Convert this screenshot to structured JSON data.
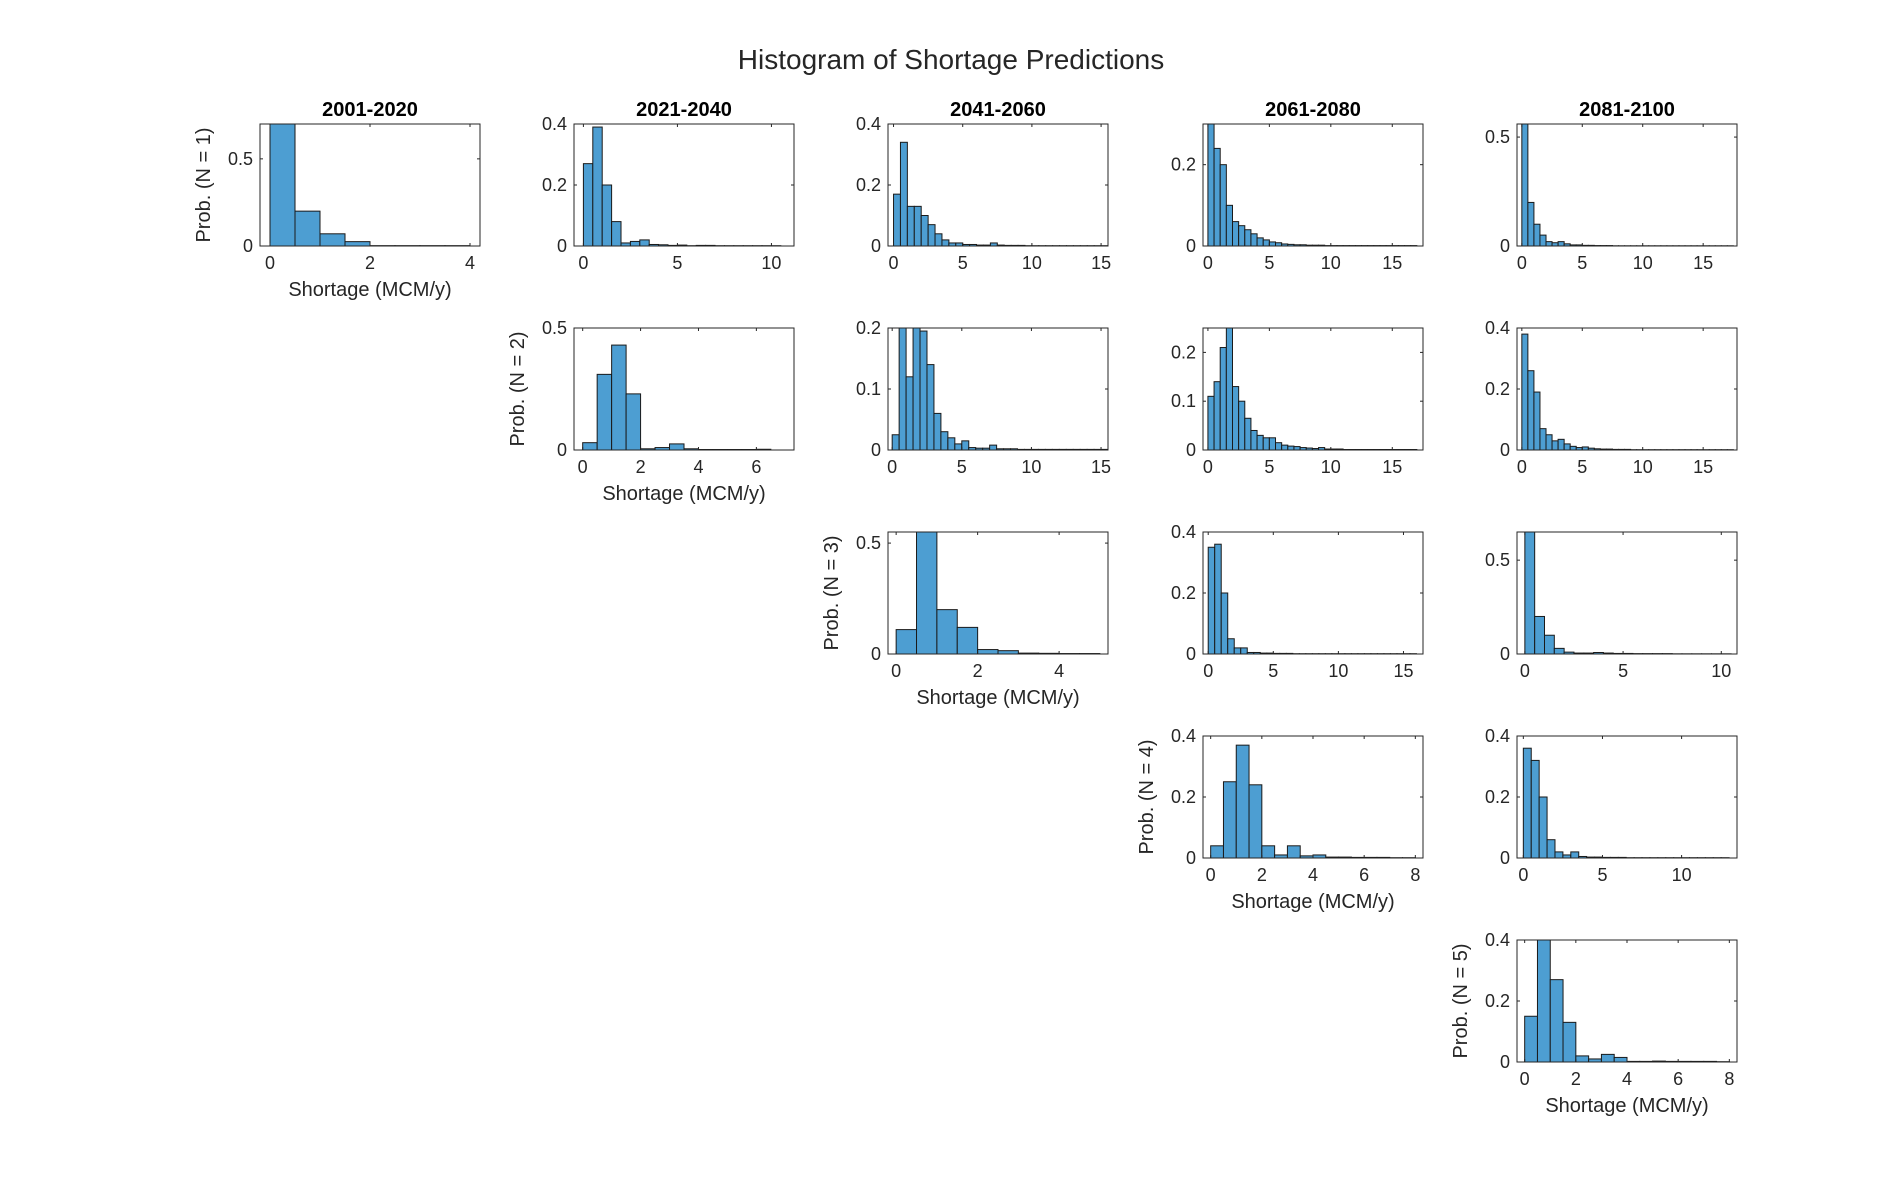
{
  "title": "Histogram of Shortage Predictions",
  "column_titles": [
    "2001-2020",
    "2021-2040",
    "2041-2060",
    "2061-2080",
    "2081-2100"
  ],
  "row_labels": [
    "Prob. (N = 1)",
    "Prob. (N = 2)",
    "Prob. (N = 3)",
    "Prob. (N = 4)",
    "Prob. (N = 5)"
  ],
  "xlabel": "Shortage (MCM/y)",
  "colors": {
    "bar": "#4d9ed2",
    "bar_edge": "#1a1a1a",
    "axis": "#262626"
  },
  "chart_data": [
    {
      "type": "bar",
      "row": 1,
      "col": 1,
      "xlim": [
        -0.2,
        4.2
      ],
      "ylim": [
        0,
        0.7
      ],
      "xticks": [
        0,
        2,
        4
      ],
      "yticks": [
        0,
        0.5
      ],
      "bin_start": 0,
      "bin_width": 0.5,
      "values": [
        0.72,
        0.2,
        0.07,
        0.025,
        0.002,
        0.002,
        0.002,
        0.002
      ]
    },
    {
      "type": "bar",
      "row": 1,
      "col": 2,
      "xlim": [
        -0.5,
        11.2
      ],
      "ylim": [
        0,
        0.4
      ],
      "xticks": [
        0,
        5,
        10
      ],
      "yticks": [
        0,
        0.2,
        0.4
      ],
      "bin_start": 0,
      "bin_width": 0.5,
      "values": [
        0.27,
        0.39,
        0.2,
        0.08,
        0.01,
        0.015,
        0.02,
        0.005,
        0.004,
        0.002,
        0.003,
        0.001,
        0.002,
        0.002,
        0.001,
        0.001,
        0.001,
        0.001,
        0.001,
        0.001,
        0.001
      ]
    },
    {
      "type": "bar",
      "row": 1,
      "col": 3,
      "xlim": [
        -0.4,
        15.5
      ],
      "ylim": [
        0,
        0.4
      ],
      "xticks": [
        0,
        5,
        10,
        15
      ],
      "yticks": [
        0,
        0.2,
        0.4
      ],
      "bin_start": 0,
      "bin_width": 0.5,
      "values": [
        0.17,
        0.34,
        0.13,
        0.13,
        0.1,
        0.07,
        0.04,
        0.02,
        0.01,
        0.01,
        0.005,
        0.005,
        0.003,
        0.003,
        0.01,
        0.003,
        0.002,
        0.002,
        0.002,
        0.001,
        0.001,
        0.001,
        0.001,
        0.001,
        0.001,
        0.001,
        0.001,
        0.001,
        0.001,
        0.001,
        0.001
      ]
    },
    {
      "type": "bar",
      "row": 1,
      "col": 4,
      "xlim": [
        -0.4,
        17.5
      ],
      "ylim": [
        0,
        0.3
      ],
      "xticks": [
        0,
        5,
        10,
        15
      ],
      "yticks": [
        0,
        0.2
      ],
      "bin_start": 0,
      "bin_width": 0.5,
      "values": [
        0.31,
        0.24,
        0.2,
        0.1,
        0.06,
        0.05,
        0.04,
        0.03,
        0.02,
        0.015,
        0.01,
        0.008,
        0.005,
        0.004,
        0.003,
        0.003,
        0.002,
        0.002,
        0.002,
        0.001,
        0.001,
        0.001,
        0.001,
        0.001,
        0.001,
        0.001,
        0.001,
        0.001,
        0.001,
        0.001,
        0.001,
        0.001,
        0.001,
        0.001
      ]
    },
    {
      "type": "bar",
      "row": 1,
      "col": 5,
      "xlim": [
        -0.4,
        17.8
      ],
      "ylim": [
        0,
        0.56
      ],
      "xticks": [
        0,
        5,
        10,
        15
      ],
      "yticks": [
        0,
        0.5
      ],
      "bin_start": 0,
      "bin_width": 0.5,
      "values": [
        0.6,
        0.2,
        0.1,
        0.05,
        0.02,
        0.015,
        0.02,
        0.01,
        0.005,
        0.005,
        0.003,
        0.003,
        0.002,
        0.002,
        0.002,
        0.001,
        0.001,
        0.001,
        0.001,
        0.001,
        0.001,
        0.001,
        0.001,
        0.001,
        0.001,
        0.001,
        0.001,
        0.001,
        0.001,
        0.001,
        0.001,
        0.001,
        0.001,
        0.001,
        0.001
      ]
    },
    {
      "type": "bar",
      "row": 2,
      "col": 2,
      "xlim": [
        -0.3,
        7.3
      ],
      "ylim": [
        0,
        0.5
      ],
      "xticks": [
        0,
        2,
        4,
        6
      ],
      "yticks": [
        0,
        0.5
      ],
      "bin_start": 0,
      "bin_width": 0.5,
      "values": [
        0.03,
        0.31,
        0.43,
        0.23,
        0.005,
        0.01,
        0.025,
        0.005,
        0.002,
        0.002,
        0.002,
        0.002,
        0.003
      ]
    },
    {
      "type": "bar",
      "row": 2,
      "col": 3,
      "xlim": [
        -0.3,
        15.5
      ],
      "ylim": [
        0,
        0.2
      ],
      "xticks": [
        0,
        5,
        10,
        15
      ],
      "yticks": [
        0,
        0.1,
        0.2
      ],
      "bin_start": 0,
      "bin_width": 0.5,
      "values": [
        0.025,
        0.2,
        0.12,
        0.2,
        0.195,
        0.14,
        0.06,
        0.03,
        0.02,
        0.01,
        0.015,
        0.004,
        0.003,
        0.003,
        0.008,
        0.002,
        0.002,
        0.002,
        0.001,
        0.001,
        0.001,
        0.001,
        0.001,
        0.001,
        0.001,
        0.001,
        0.001,
        0.001,
        0.001,
        0.001,
        0.001
      ]
    },
    {
      "type": "bar",
      "row": 2,
      "col": 4,
      "xlim": [
        -0.4,
        17.5
      ],
      "ylim": [
        0,
        0.25
      ],
      "xticks": [
        0,
        5,
        10,
        15
      ],
      "yticks": [
        0,
        0.1,
        0.2
      ],
      "bin_start": 0,
      "bin_width": 0.5,
      "values": [
        0.11,
        0.14,
        0.21,
        0.25,
        0.13,
        0.1,
        0.065,
        0.04,
        0.03,
        0.025,
        0.025,
        0.015,
        0.01,
        0.008,
        0.007,
        0.005,
        0.004,
        0.003,
        0.005,
        0.002,
        0.002,
        0.002,
        0.001,
        0.001,
        0.001,
        0.001,
        0.001,
        0.001,
        0.001,
        0.001,
        0.001,
        0.001,
        0.001,
        0.001
      ]
    },
    {
      "type": "bar",
      "row": 2,
      "col": 5,
      "xlim": [
        -0.4,
        17.8
      ],
      "ylim": [
        0,
        0.4
      ],
      "xticks": [
        0,
        5,
        10,
        15
      ],
      "yticks": [
        0,
        0.2,
        0.4
      ],
      "bin_start": 0,
      "bin_width": 0.5,
      "values": [
        0.38,
        0.26,
        0.19,
        0.07,
        0.05,
        0.03,
        0.035,
        0.02,
        0.012,
        0.008,
        0.01,
        0.006,
        0.004,
        0.003,
        0.003,
        0.002,
        0.002,
        0.002,
        0.001,
        0.001,
        0.001,
        0.001,
        0.001,
        0.001,
        0.001,
        0.001,
        0.001,
        0.001,
        0.001,
        0.001,
        0.001,
        0.001,
        0.001,
        0.001,
        0.001
      ]
    },
    {
      "type": "bar",
      "row": 3,
      "col": 3,
      "xlim": [
        -0.2,
        5.2
      ],
      "ylim": [
        0,
        0.55
      ],
      "xticks": [
        0,
        2,
        4
      ],
      "yticks": [
        0,
        0.5
      ],
      "bin_start": 0,
      "bin_width": 0.5,
      "values": [
        0.11,
        0.57,
        0.2,
        0.12,
        0.02,
        0.015,
        0.004,
        0.003,
        0.002,
        0.002
      ]
    },
    {
      "type": "bar",
      "row": 3,
      "col": 4,
      "xlim": [
        -0.4,
        16.5
      ],
      "ylim": [
        0,
        0.4
      ],
      "xticks": [
        0,
        5,
        10,
        15
      ],
      "yticks": [
        0,
        0.2,
        0.4
      ],
      "bin_start": 0,
      "bin_width": 0.5,
      "values": [
        0.35,
        0.36,
        0.2,
        0.05,
        0.02,
        0.02,
        0.005,
        0.005,
        0.003,
        0.003,
        0.002,
        0.002,
        0.002,
        0.001,
        0.001,
        0.001,
        0.001,
        0.001,
        0.001,
        0.001,
        0.001,
        0.001,
        0.001,
        0.001,
        0.001,
        0.001,
        0.001,
        0.001,
        0.001,
        0.001,
        0.001,
        0.001
      ]
    },
    {
      "type": "bar",
      "row": 3,
      "col": 5,
      "xlim": [
        -0.4,
        10.8
      ],
      "ylim": [
        0,
        0.65
      ],
      "xticks": [
        0,
        5,
        10
      ],
      "yticks": [
        0,
        0.5
      ],
      "bin_start": 0,
      "bin_width": 0.5,
      "values": [
        0.7,
        0.2,
        0.1,
        0.03,
        0.01,
        0.005,
        0.005,
        0.008,
        0.005,
        0.003,
        0.003,
        0.002,
        0.002,
        0.002,
        0.002,
        0.001,
        0.001,
        0.001,
        0.001,
        0.001,
        0.001
      ]
    },
    {
      "type": "bar",
      "row": 4,
      "col": 4,
      "xlim": [
        -0.3,
        8.3
      ],
      "ylim": [
        0,
        0.4
      ],
      "xticks": [
        0,
        2,
        4,
        6,
        8
      ],
      "yticks": [
        0,
        0.2,
        0.4
      ],
      "bin_start": 0,
      "bin_width": 0.5,
      "values": [
        0.04,
        0.25,
        0.37,
        0.24,
        0.04,
        0.01,
        0.04,
        0.007,
        0.01,
        0.003,
        0.003,
        0.002,
        0.002,
        0.002,
        0.001,
        0.001
      ]
    },
    {
      "type": "bar",
      "row": 4,
      "col": 5,
      "xlim": [
        -0.4,
        13.5
      ],
      "ylim": [
        0,
        0.4
      ],
      "xticks": [
        0,
        5,
        10
      ],
      "yticks": [
        0,
        0.2,
        0.4
      ],
      "bin_start": 0,
      "bin_width": 0.5,
      "values": [
        0.36,
        0.32,
        0.2,
        0.06,
        0.02,
        0.01,
        0.02,
        0.005,
        0.003,
        0.003,
        0.002,
        0.002,
        0.002,
        0.001,
        0.001,
        0.001,
        0.001,
        0.001,
        0.001,
        0.001,
        0.001,
        0.001,
        0.001,
        0.001,
        0.001,
        0.001
      ]
    },
    {
      "type": "bar",
      "row": 5,
      "col": 5,
      "xlim": [
        -0.3,
        8.3
      ],
      "ylim": [
        0,
        0.4
      ],
      "xticks": [
        0,
        2,
        4,
        6,
        8
      ],
      "yticks": [
        0,
        0.2,
        0.4
      ],
      "bin_start": 0,
      "bin_width": 0.5,
      "values": [
        0.15,
        0.4,
        0.27,
        0.13,
        0.02,
        0.01,
        0.025,
        0.015,
        0.002,
        0.002,
        0.003,
        0.002,
        0.002,
        0.002,
        0.002,
        0.001
      ]
    }
  ]
}
